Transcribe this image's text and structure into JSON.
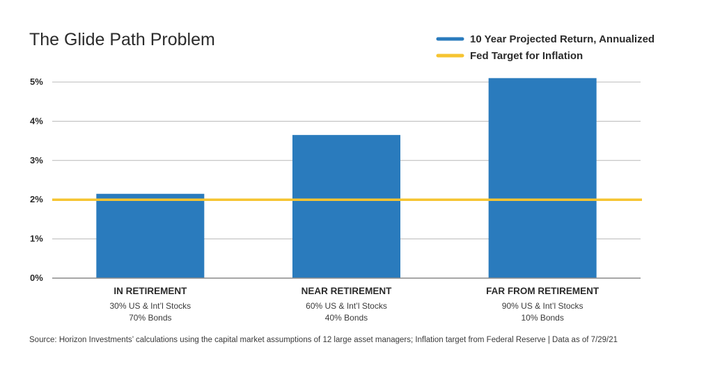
{
  "chart_data": {
    "type": "bar",
    "title": "The Glide Path Problem",
    "categories": [
      "IN RETIREMENT",
      "NEAR RETIREMENT",
      "FAR FROM RETIREMENT"
    ],
    "category_details": [
      [
        "30% US & Int’l Stocks",
        "70% Bonds"
      ],
      [
        "60% US & Int’l Stocks",
        "40% Bonds"
      ],
      [
        "90% US & Int’l Stocks",
        "10% Bonds"
      ]
    ],
    "series": [
      {
        "name": "10 Year Projected Return, Annualized",
        "values": [
          2.15,
          3.65,
          5.1
        ],
        "color": "#2a7bbd"
      }
    ],
    "reference_lines": [
      {
        "name": "Fed Target for Inflation",
        "value": 2.0,
        "color": "#f6c431"
      }
    ],
    "yticks": [
      0,
      1,
      2,
      3,
      4,
      5
    ],
    "ytick_labels": [
      "0%",
      "1%",
      "2%",
      "3%",
      "4%",
      "5%"
    ],
    "ylim": [
      0,
      5
    ],
    "grid": true,
    "legend_position": "top-right",
    "source": "Source:  Horizon Investments’ calculations using the capital market assumptions of 12 large asset managers; Inflation target from Federal Reserve | Data as of 7/29/21"
  }
}
